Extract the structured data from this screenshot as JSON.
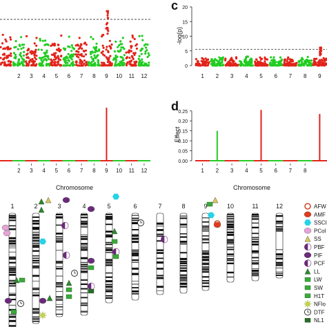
{
  "panel_letters": {
    "c": "c",
    "d": "d"
  },
  "colors": {
    "red": "#e2231a",
    "green": "#22cc22",
    "threshold": "#333333",
    "axis": "#222222"
  },
  "chart_data": [
    {
      "id": "manhattan_left",
      "type": "scatter",
      "title": "",
      "xlabel": "",
      "ylabel": "",
      "x_tick_labels": [
        "2",
        "3",
        "4",
        "5",
        "6",
        "7",
        "8",
        "9",
        "10",
        "11",
        "12"
      ],
      "chromosome_colors": [
        "red",
        "green",
        "red",
        "green",
        "red",
        "green",
        "red",
        "green",
        "red",
        "green",
        "red",
        "green"
      ],
      "threshold": "dashed",
      "peak_chromosome": "9"
    },
    {
      "id": "manhattan_right",
      "type": "scatter",
      "panel": "c",
      "title": "",
      "xlabel": "",
      "ylabel": "-log(p)",
      "y_ticks": [
        "0",
        "5",
        "10",
        "15",
        "20"
      ],
      "ylim": [
        0,
        20
      ],
      "threshold_value": 5.5,
      "x_tick_labels": [
        "1",
        "2",
        "3",
        "4",
        "5",
        "6",
        "7",
        "8",
        "9"
      ],
      "peak_chromosome": "9",
      "peak_value": 6.2
    },
    {
      "id": "effect_left",
      "type": "bar",
      "xlabel": "Chromosome",
      "x_tick_labels": [
        "2",
        "3",
        "4",
        "5",
        "6",
        "7",
        "8",
        "9",
        "10",
        "11",
        "12"
      ],
      "peaks": [
        {
          "chromosome": "9",
          "value": 0.25,
          "color": "red"
        }
      ]
    },
    {
      "id": "effect_right",
      "type": "bar",
      "panel": "d",
      "xlabel": "Chromosome",
      "ylabel": "Effect",
      "y_ticks": [
        "0.00",
        "0.05",
        "0.10",
        "0.15",
        "0.20",
        "0.25"
      ],
      "ylim": [
        0,
        0.27
      ],
      "x_tick_labels": [
        "1",
        "2",
        "3",
        "4",
        "5",
        "6",
        "7",
        "8"
      ],
      "peaks": [
        {
          "chromosome": "2",
          "value": 0.15,
          "color": "green"
        },
        {
          "chromosome": "5",
          "value": 0.255,
          "color": "red"
        },
        {
          "chromosome": "9",
          "value": 0.235,
          "color": "red"
        }
      ]
    },
    {
      "id": "chromosome_map",
      "type": "diagram",
      "chromosome_labels": [
        "1",
        "2",
        "3",
        "4",
        "5",
        "6",
        "7",
        "8",
        "9",
        "10",
        "11",
        "12"
      ],
      "legend": [
        "AFW",
        "AMF",
        "SSCI",
        "PCol",
        "SS",
        "PBF",
        "PIF",
        "PCF",
        "LL",
        "LW",
        "SW",
        "H1T",
        "NFlo",
        "DTF",
        "NL1"
      ]
    }
  ]
}
